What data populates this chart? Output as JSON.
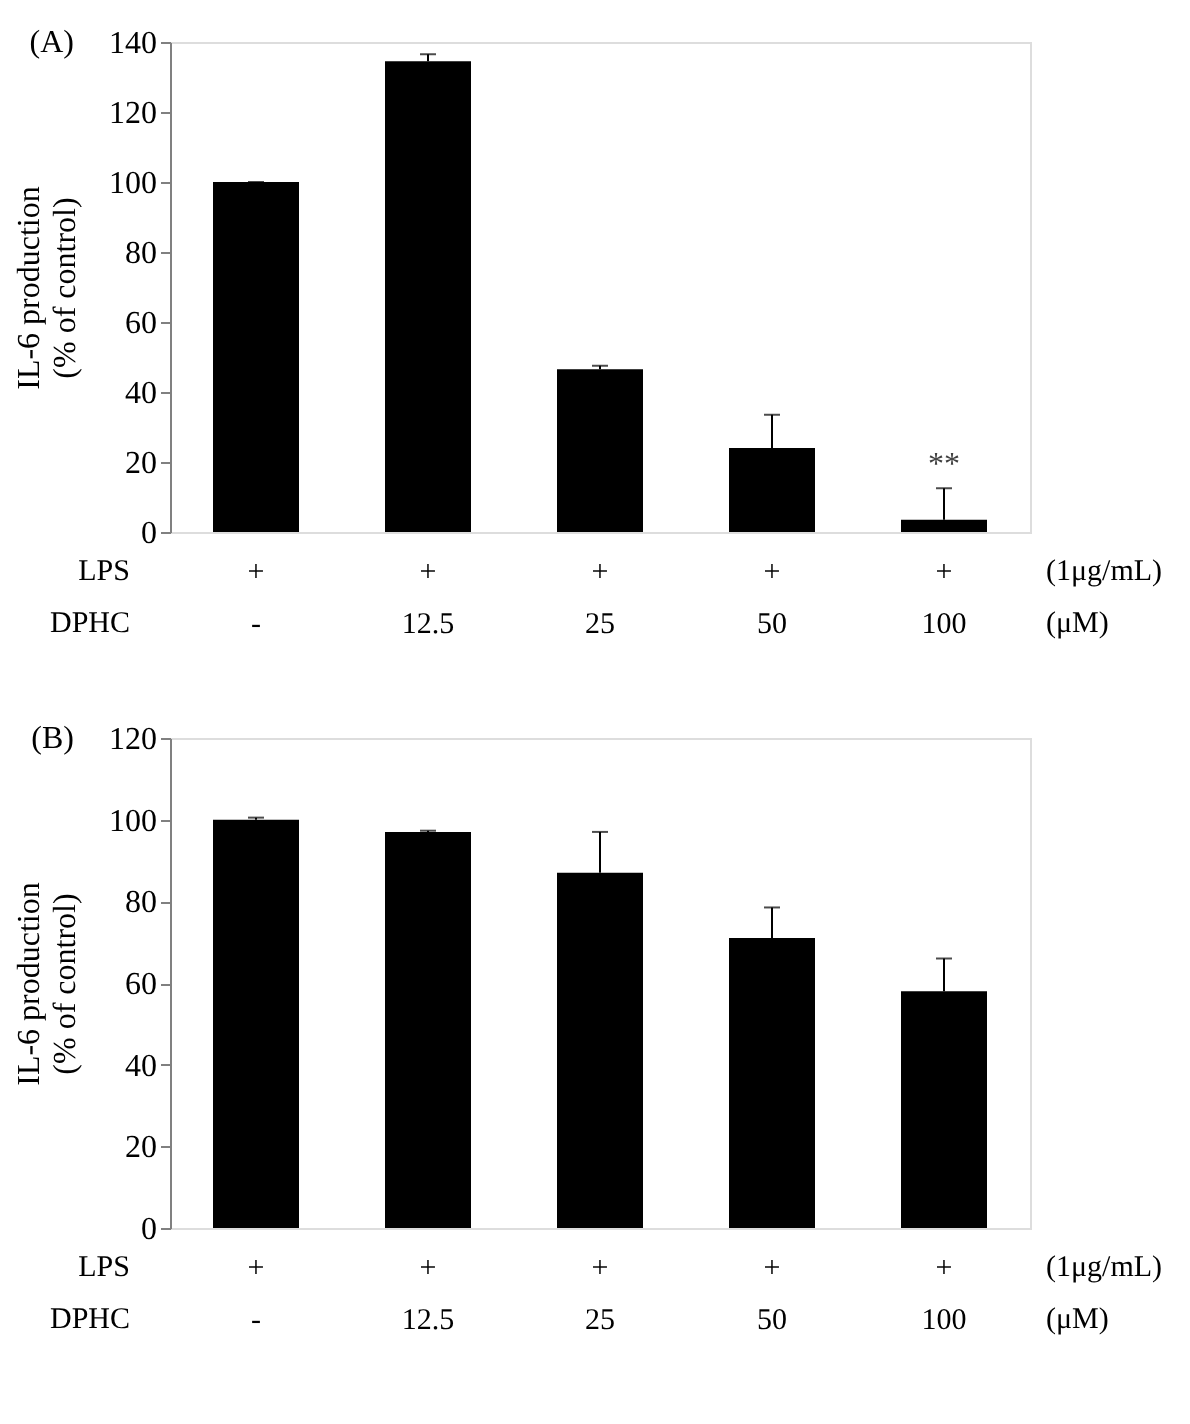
{
  "chart_data": [
    {
      "type": "bar",
      "title": "(A)",
      "ylabel": "IL-6 production\n(% of control)",
      "categories": [
        "+\n-",
        "+\n12.5",
        "+\n25",
        "+\n50",
        "+\n100"
      ],
      "color": "#000000",
      "values": [
        100,
        134.5,
        46.5,
        24,
        3.5
      ],
      "errors": [
        [
          100,
          100
        ],
        [
          134.5,
          136.5
        ],
        [
          46.5,
          47.5
        ],
        [
          24,
          33.5
        ],
        [
          3.5,
          12.5
        ]
      ],
      "ylim": [
        0,
        140
      ],
      "yticks": [
        0,
        20,
        40,
        60,
        80,
        100,
        120,
        140
      ],
      "grid": false,
      "annotations": [
        "LPS\nDPHC",
        "(1μg/mL)\n(μM)",
        "**"
      ]
    },
    {
      "type": "bar",
      "title": "(B)",
      "ylabel": "IL-6 production\n(% of control)",
      "categories": [
        "+\n-",
        "+\n12.5",
        "+\n25",
        "+\n50",
        "+\n100"
      ],
      "color": "#000000",
      "values": [
        100,
        97,
        87,
        71,
        58
      ],
      "errors": [
        [
          100,
          100.5
        ],
        [
          97,
          97.3
        ],
        [
          87,
          97
        ],
        [
          71,
          78.5
        ],
        [
          58,
          66
        ]
      ],
      "ylim": [
        0,
        120
      ],
      "yticks": [
        0,
        20,
        40,
        60,
        80,
        100,
        120
      ],
      "grid": false,
      "annotations": [
        "LPS\nDPHC",
        "(1μg/mL)\n(μM)"
      ]
    }
  ]
}
